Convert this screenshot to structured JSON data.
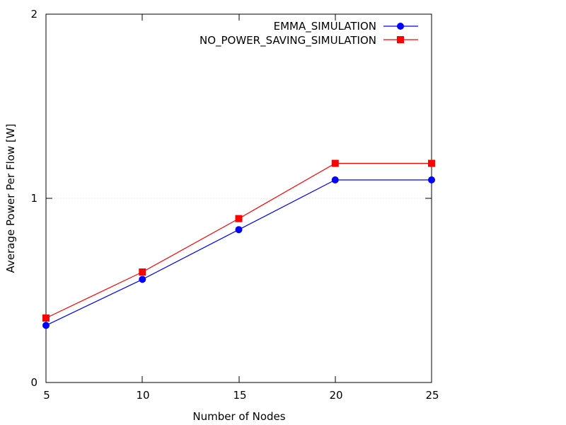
{
  "chart_data": {
    "type": "line",
    "title": "",
    "xlabel": "Number of Nodes",
    "ylabel": "Average Power Per Flow [W]",
    "x": [
      5,
      10,
      15,
      20,
      25
    ],
    "xlim": [
      5,
      25
    ],
    "ylim": [
      0,
      2
    ],
    "xticks": [
      "5",
      "10",
      "15",
      "20",
      "25"
    ],
    "yticks": [
      "0",
      "1",
      "2"
    ],
    "grid": "dotted horizontal line at y=1",
    "legend_position": "top-right",
    "series": [
      {
        "name": "EMMA_SIMULATION",
        "color": "#0000ff",
        "marker": "circle",
        "values": [
          0.31,
          0.56,
          0.83,
          1.1,
          1.1
        ]
      },
      {
        "name": "NO_POWER_SAVING_SIMULATION",
        "color": "#ff0000",
        "marker": "square",
        "values": [
          0.35,
          0.6,
          0.89,
          1.19,
          1.19
        ]
      }
    ]
  }
}
